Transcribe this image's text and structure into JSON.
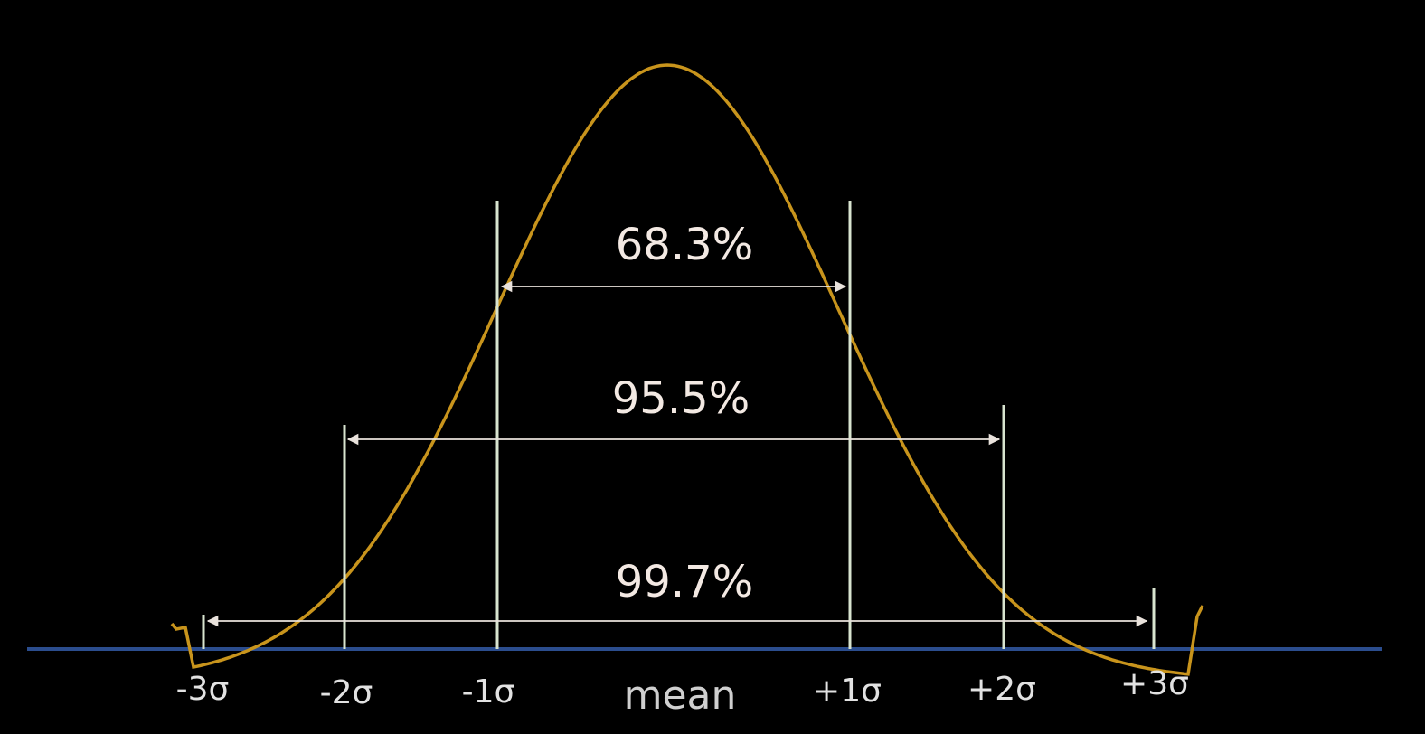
{
  "colors": {
    "background": "#000000",
    "curve": "#c8941c",
    "baseline": "#2b4d8e",
    "sigma_lines": "#d8e4cf",
    "arrows": "#e9e2dc",
    "text": "#e6e6e6"
  },
  "chart_data": {
    "type": "normal-distribution",
    "x": [
      "-3σ",
      "-2σ",
      "-1σ",
      "mean",
      "+1σ",
      "+2σ",
      "+3σ"
    ],
    "sigma_positions": [
      -3,
      -2,
      -1,
      0,
      1,
      2,
      3
    ],
    "intervals": [
      {
        "label": "68.3%",
        "from": -1,
        "to": 1
      },
      {
        "label": "95.5%",
        "from": -2,
        "to": 2
      },
      {
        "label": "99.7%",
        "from": -3,
        "to": 3
      }
    ]
  },
  "labels": {
    "neg3": "-3σ",
    "neg2": "-2σ",
    "neg1": "-1σ",
    "mean": "mean",
    "pos1": "+1σ",
    "pos2": "+2σ",
    "pos3": "+3σ",
    "pct68": "68.3%",
    "pct95": "95.5%",
    "pct99": "99.7%"
  }
}
